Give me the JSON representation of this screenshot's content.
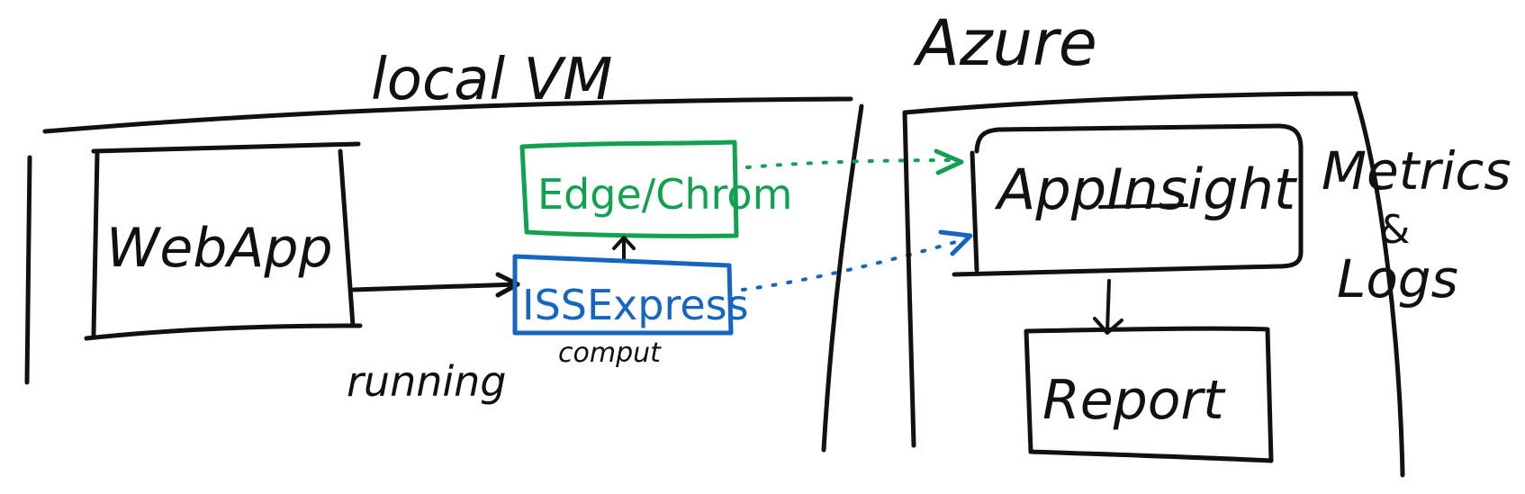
{
  "colors": {
    "ink": "#111111",
    "green": "#12a150",
    "blue": "#1466c0"
  },
  "labels": {
    "local_vm": "local VM",
    "azure": "Azure",
    "web_app": "WebApp",
    "edge_chrome": "Edge/Chrom",
    "iis_express": "ISSExpress",
    "running": "running",
    "compute": "comput",
    "app_insight": "AppInsight",
    "metrics": "Metrics",
    "and_sign": "&",
    "logs": "Logs",
    "report": "Report"
  }
}
